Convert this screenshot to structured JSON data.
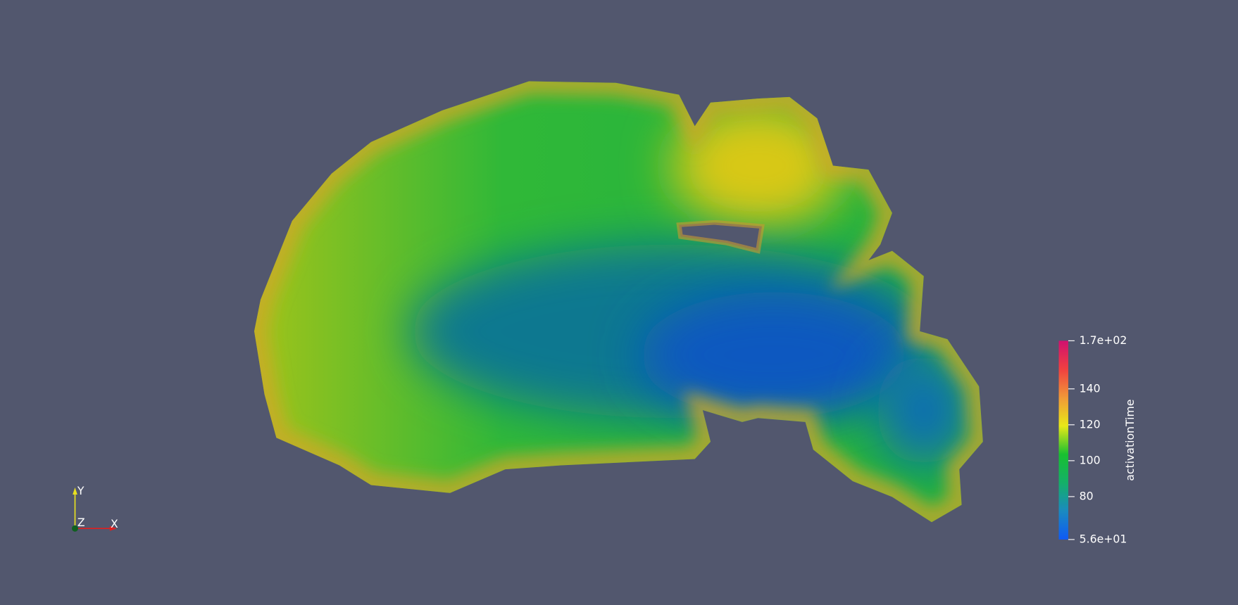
{
  "colorbar": {
    "title": "activationTime",
    "range": [
      56.1,
      166.8
    ],
    "ticks": [
      {
        "value": 166.8,
        "label": "1.7e+02"
      },
      140,
      120,
      100,
      80,
      {
        "value": 56.1,
        "label": "5.6e+01"
      }
    ],
    "colormap": [
      "#0f5af5",
      "#1a8ac0",
      "#14b068",
      "#18c030",
      "#e8e818",
      "#f09838",
      "#f04040",
      "#d01070"
    ]
  },
  "axes": {
    "y": "Y",
    "z": "Z",
    "x": "X"
  }
}
